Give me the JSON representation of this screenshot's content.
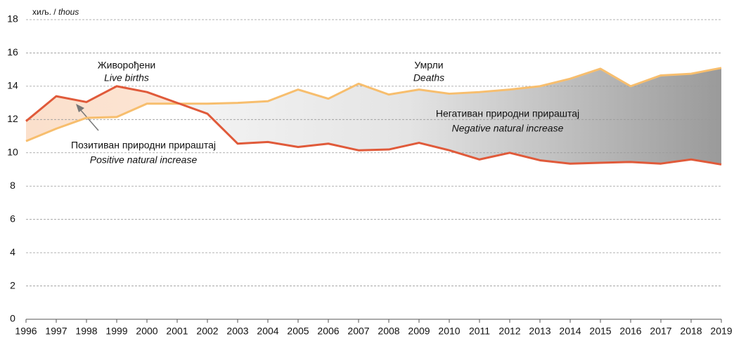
{
  "chart_data": {
    "type": "line",
    "y_label": {
      "sr": "хиљ. /",
      "en": "thous"
    },
    "categories": [
      "1996",
      "1997",
      "1998",
      "1999",
      "2000",
      "2001",
      "2002",
      "2003",
      "2004",
      "2005",
      "2006",
      "2007",
      "2008",
      "2009",
      "2010",
      "2011",
      "2012",
      "2013",
      "2014",
      "2015",
      "2016",
      "2017",
      "2018",
      "2019"
    ],
    "series": [
      {
        "name": "Живорођени",
        "name_en": "Live births",
        "color": "#e05a3a",
        "values": [
          11.9,
          13.4,
          13.05,
          14.0,
          13.65,
          13.0,
          12.35,
          10.55,
          10.65,
          10.35,
          10.55,
          10.15,
          10.2,
          10.6,
          10.15,
          9.6,
          10.0,
          9.55,
          9.35,
          9.4,
          9.45,
          9.35,
          9.6,
          9.3
        ]
      },
      {
        "name": "Умрли",
        "name_en": "Deaths",
        "color": "#f7be6e",
        "values": [
          10.7,
          11.45,
          12.1,
          12.15,
          12.95,
          12.95,
          12.95,
          13.0,
          13.1,
          13.8,
          13.25,
          14.15,
          13.5,
          13.8,
          13.55,
          13.65,
          13.8,
          14.0,
          14.45,
          15.05,
          14.0,
          14.65,
          14.75,
          15.1
        ]
      }
    ],
    "annotations": {
      "positive": {
        "sr": "Позитиван природни прираштај",
        "en": "Positive natural increase"
      },
      "negative": {
        "sr": "Негативан природни прираштај",
        "en": "Negative natural increase"
      }
    },
    "ylim": [
      0,
      18
    ],
    "yticks": [
      0,
      2,
      4,
      6,
      8,
      10,
      12,
      14,
      16,
      18
    ],
    "grid": true
  }
}
